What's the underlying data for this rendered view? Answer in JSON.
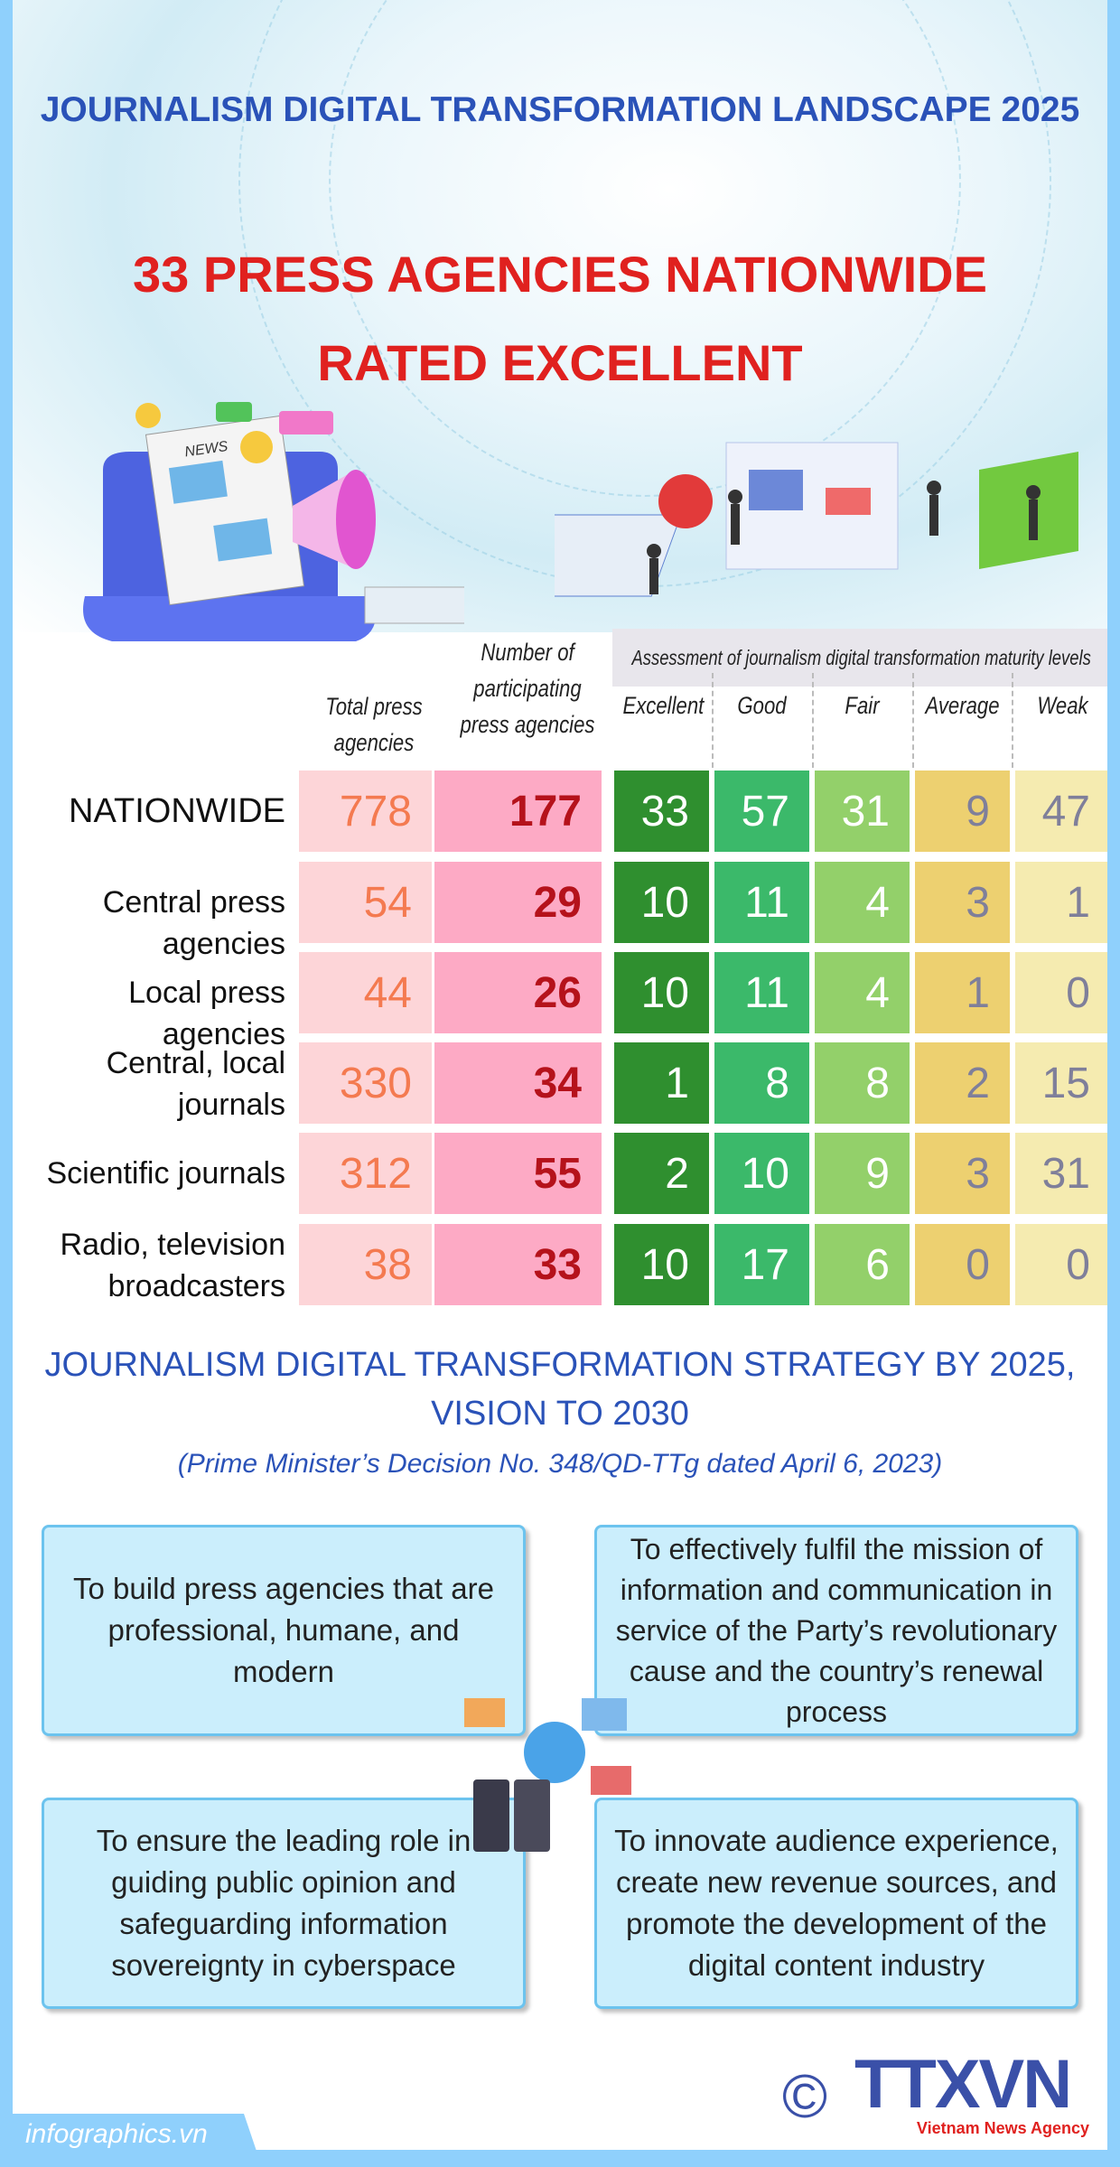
{
  "header": {
    "supertitle": "JOURNALISM DIGITAL TRANSFORMATION LANDSCAPE 2025",
    "title_line1": "33 PRESS AGENCIES NATIONWIDE",
    "title_line2": "RATED EXCELLENT",
    "illustration_label": "NEWS"
  },
  "table": {
    "col_total": "Total press agencies",
    "col_participating": "Number of participating press agencies",
    "assessment_title": "Assessment of journalism digital transformation maturity levels",
    "levels": [
      "Excellent",
      "Good",
      "Fair",
      "Average",
      "Weak"
    ],
    "level_colors": [
      "#2f8f2f",
      "#3bb96a",
      "#93d06a",
      "#edd070",
      "#f5ebb0"
    ],
    "rows": [
      {
        "label": "NATIONWIDE",
        "total": "778",
        "participating": "177",
        "values": [
          "33",
          "57",
          "31",
          "9",
          "47"
        ]
      },
      {
        "label": "Central press agencies",
        "total": "54",
        "participating": "29",
        "values": [
          "10",
          "11",
          "4",
          "3",
          "1"
        ]
      },
      {
        "label": "Local press agencies",
        "total": "44",
        "participating": "26",
        "values": [
          "10",
          "11",
          "4",
          "1",
          "0"
        ]
      },
      {
        "label": "Central, local journals",
        "total": "330",
        "participating": "34",
        "values": [
          "1",
          "8",
          "8",
          "2",
          "15"
        ]
      },
      {
        "label": "Scientific journals",
        "total": "312",
        "participating": "55",
        "values": [
          "2",
          "10",
          "9",
          "3",
          "31"
        ]
      },
      {
        "label": "Radio, television broadcasters",
        "total": "38",
        "participating": "33",
        "values": [
          "10",
          "17",
          "6",
          "0",
          "0"
        ]
      }
    ]
  },
  "strategy": {
    "title_line1": "JOURNALISM DIGITAL TRANSFORMATION STRATEGY BY 2025,",
    "title_line2": "VISION TO 2030",
    "subtitle": "(Prime Minister’s Decision No. 348/QD-TTg dated April 6, 2023)",
    "goals": [
      "To build press agencies that are professional, humane, and modern",
      "To effectively fulfil the mission of information and communication in service of the Party’s revolutionary cause and the country’s renewal process",
      "To ensure the leading role in guiding public opinion and safeguarding information sovereignty in cyberspace",
      "To innovate audience experience, create new revenue sources, and promote the development of the digital content industry"
    ]
  },
  "footer": {
    "site": "infographics.vn",
    "copyright": "©",
    "logo_text": "TTXVN",
    "logo_sub": "Vietnam News Agency"
  }
}
